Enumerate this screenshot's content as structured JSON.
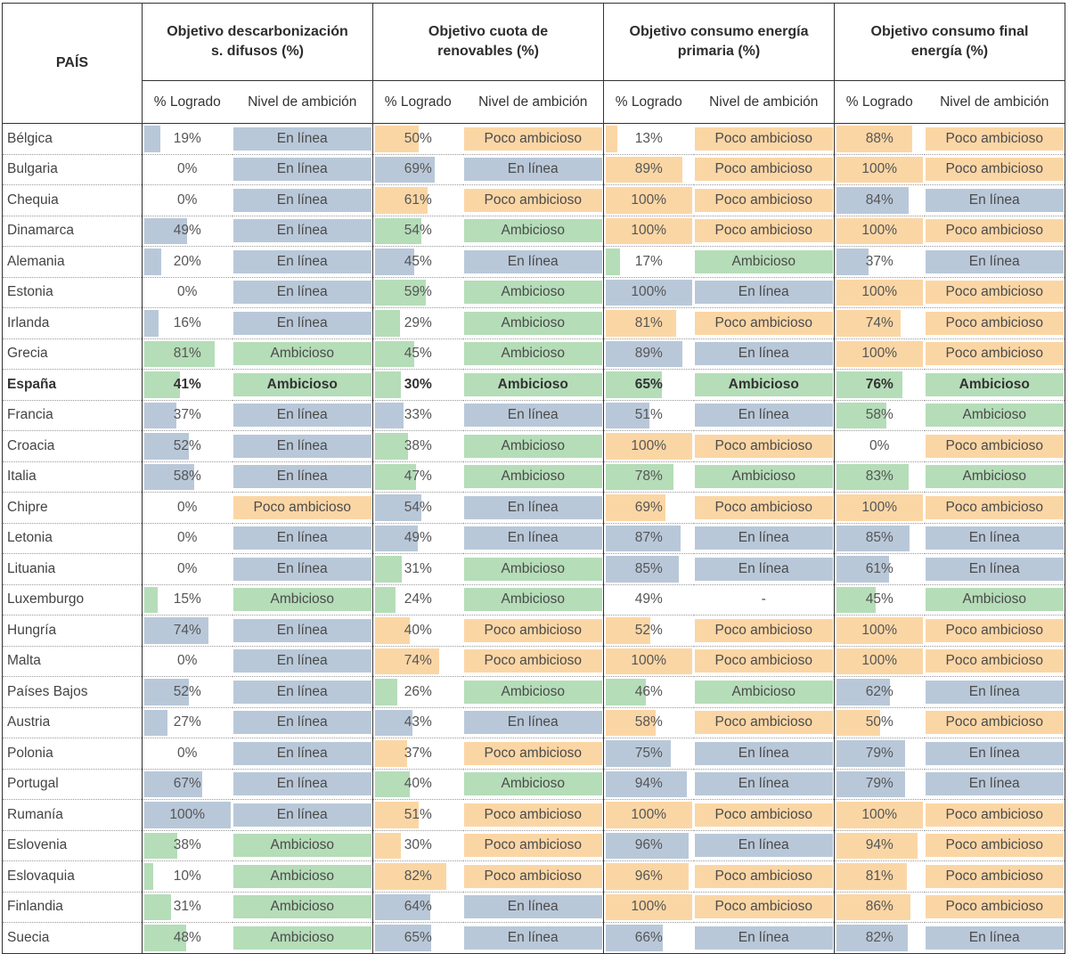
{
  "header": {
    "country_label": "PAÍS",
    "groups": [
      {
        "title_line1": "Objetivo descarbonización",
        "title_line2": "s. difusos (%)"
      },
      {
        "title_line1": "Objetivo cuota de",
        "title_line2": "renovables (%)"
      },
      {
        "title_line1": "Objetivo consumo energía",
        "title_line2": "primaria (%)"
      },
      {
        "title_line1": "Objetivo consumo final",
        "title_line2": "energía (%)"
      }
    ],
    "sub_pct": "% Logrado",
    "sub_level": "Nivel de ambición"
  },
  "colors": {
    "En línea": "#b9c8d9",
    "Ambicioso": "#b5ddb8",
    "Poco ambicioso": "#fbd6a5",
    "-": "#ffffff"
  },
  "chart_data": {
    "type": "table",
    "columns": [
      "PAÍS",
      "Objetivo descarbonización s. difusos (%) - % Logrado",
      "Objetivo descarbonización s. difusos (%) - Nivel de ambición",
      "Objetivo cuota de renovables (%) - % Logrado",
      "Objetivo cuota de renovables (%) - Nivel de ambición",
      "Objetivo consumo energía primaria (%) - % Logrado",
      "Objetivo consumo energía primaria (%) - Nivel de ambición",
      "Objetivo consumo final energía (%) - % Logrado",
      "Objetivo consumo final energía (%) - Nivel de ambición"
    ],
    "highlight_row": "España",
    "rows": [
      {
        "country": "Bélgica",
        "cells": [
          {
            "pct": "19%",
            "value": 19,
            "level": "En línea"
          },
          {
            "pct": "50%",
            "value": 50,
            "level": "Poco ambicioso"
          },
          {
            "pct": "13%",
            "value": 13,
            "level": "Poco ambicioso"
          },
          {
            "pct": "88%",
            "value": 88,
            "level": "Poco ambicioso"
          }
        ]
      },
      {
        "country": "Bulgaria",
        "cells": [
          {
            "pct": "0%",
            "value": 0,
            "level": "En línea"
          },
          {
            "pct": "69%",
            "value": 69,
            "level": "En línea"
          },
          {
            "pct": "89%",
            "value": 89,
            "level": "Poco ambicioso"
          },
          {
            "pct": "100%",
            "value": 100,
            "level": "Poco ambicioso"
          }
        ]
      },
      {
        "country": "Chequia",
        "cells": [
          {
            "pct": "0%",
            "value": 0,
            "level": "En línea"
          },
          {
            "pct": "61%",
            "value": 61,
            "level": "Poco ambicioso"
          },
          {
            "pct": "100%",
            "value": 100,
            "level": "Poco ambicioso"
          },
          {
            "pct": "84%",
            "value": 84,
            "level": "En línea"
          }
        ]
      },
      {
        "country": "Dinamarca",
        "cells": [
          {
            "pct": "49%",
            "value": 49,
            "level": "En línea"
          },
          {
            "pct": "54%",
            "value": 54,
            "level": "Ambicioso"
          },
          {
            "pct": "100%",
            "value": 100,
            "level": "Poco ambicioso"
          },
          {
            "pct": "100%",
            "value": 100,
            "level": "Poco ambicioso"
          }
        ]
      },
      {
        "country": "Alemania",
        "cells": [
          {
            "pct": "20%",
            "value": 20,
            "level": "En línea"
          },
          {
            "pct": "45%",
            "value": 45,
            "level": "En línea"
          },
          {
            "pct": "17%",
            "value": 17,
            "level": "Ambicioso"
          },
          {
            "pct": "37%",
            "value": 37,
            "level": "En línea"
          }
        ]
      },
      {
        "country": "Estonia",
        "cells": [
          {
            "pct": "0%",
            "value": 0,
            "level": "En línea"
          },
          {
            "pct": "59%",
            "value": 59,
            "level": "Ambicioso"
          },
          {
            "pct": "100%",
            "value": 100,
            "level": "En línea"
          },
          {
            "pct": "100%",
            "value": 100,
            "level": "Poco ambicioso"
          }
        ]
      },
      {
        "country": "Irlanda",
        "cells": [
          {
            "pct": "16%",
            "value": 16,
            "level": "En línea"
          },
          {
            "pct": "29%",
            "value": 29,
            "level": "Ambicioso"
          },
          {
            "pct": "81%",
            "value": 81,
            "level": "Poco ambicioso"
          },
          {
            "pct": "74%",
            "value": 74,
            "level": "Poco ambicioso"
          }
        ]
      },
      {
        "country": "Grecia",
        "cells": [
          {
            "pct": "81%",
            "value": 81,
            "level": "Ambicioso"
          },
          {
            "pct": "45%",
            "value": 45,
            "level": "Ambicioso"
          },
          {
            "pct": "89%",
            "value": 89,
            "level": "En línea"
          },
          {
            "pct": "100%",
            "value": 100,
            "level": "Poco ambicioso"
          }
        ]
      },
      {
        "country": "España",
        "cells": [
          {
            "pct": "41%",
            "value": 41,
            "level": "Ambicioso"
          },
          {
            "pct": "30%",
            "value": 30,
            "level": "Ambicioso"
          },
          {
            "pct": "65%",
            "value": 65,
            "level": "Ambicioso"
          },
          {
            "pct": "76%",
            "value": 76,
            "level": "Ambicioso"
          }
        ]
      },
      {
        "country": "Francia",
        "cells": [
          {
            "pct": "37%",
            "value": 37,
            "level": "En línea"
          },
          {
            "pct": "33%",
            "value": 33,
            "level": "En línea"
          },
          {
            "pct": "51%",
            "value": 51,
            "level": "En línea"
          },
          {
            "pct": "58%",
            "value": 58,
            "level": "Ambicioso"
          }
        ]
      },
      {
        "country": "Croacia",
        "cells": [
          {
            "pct": "52%",
            "value": 52,
            "level": "En línea"
          },
          {
            "pct": "38%",
            "value": 38,
            "level": "Ambicioso"
          },
          {
            "pct": "100%",
            "value": 100,
            "level": "Poco ambicioso"
          },
          {
            "pct": "0%",
            "value": 0,
            "level": "Poco ambicioso"
          }
        ]
      },
      {
        "country": "Italia",
        "cells": [
          {
            "pct": "58%",
            "value": 58,
            "level": "En línea"
          },
          {
            "pct": "47%",
            "value": 47,
            "level": "Ambicioso"
          },
          {
            "pct": "78%",
            "value": 78,
            "level": "Ambicioso"
          },
          {
            "pct": "83%",
            "value": 83,
            "level": "Ambicioso"
          }
        ]
      },
      {
        "country": "Chipre",
        "cells": [
          {
            "pct": "0%",
            "value": 0,
            "level": "Poco ambicioso"
          },
          {
            "pct": "54%",
            "value": 54,
            "level": "En línea"
          },
          {
            "pct": "69%",
            "value": 69,
            "level": "Poco ambicioso"
          },
          {
            "pct": "100%",
            "value": 100,
            "level": "Poco ambicioso"
          }
        ]
      },
      {
        "country": "Letonia",
        "cells": [
          {
            "pct": "0%",
            "value": 0,
            "level": "En línea"
          },
          {
            "pct": "49%",
            "value": 49,
            "level": "En línea"
          },
          {
            "pct": "87%",
            "value": 87,
            "level": "En línea"
          },
          {
            "pct": "85%",
            "value": 85,
            "level": "En línea"
          }
        ]
      },
      {
        "country": "Lituania",
        "cells": [
          {
            "pct": "0%",
            "value": 0,
            "level": "En línea"
          },
          {
            "pct": "31%",
            "value": 31,
            "level": "Ambicioso"
          },
          {
            "pct": "85%",
            "value": 85,
            "level": "En línea"
          },
          {
            "pct": "61%",
            "value": 61,
            "level": "En línea"
          }
        ]
      },
      {
        "country": "Luxemburgo",
        "cells": [
          {
            "pct": "15%",
            "value": 15,
            "level": "Ambicioso"
          },
          {
            "pct": "24%",
            "value": 24,
            "level": "Ambicioso"
          },
          {
            "pct": "49%",
            "value": 49,
            "level": "-"
          },
          {
            "pct": "45%",
            "value": 45,
            "level": "Ambicioso"
          }
        ]
      },
      {
        "country": "Hungría",
        "cells": [
          {
            "pct": "74%",
            "value": 74,
            "level": "En línea"
          },
          {
            "pct": "40%",
            "value": 40,
            "level": "Poco ambicioso"
          },
          {
            "pct": "52%",
            "value": 52,
            "level": "Poco ambicioso"
          },
          {
            "pct": "100%",
            "value": 100,
            "level": "Poco ambicioso"
          }
        ]
      },
      {
        "country": "Malta",
        "cells": [
          {
            "pct": "0%",
            "value": 0,
            "level": "En línea"
          },
          {
            "pct": "74%",
            "value": 74,
            "level": "Poco ambicioso"
          },
          {
            "pct": "100%",
            "value": 100,
            "level": "Poco ambicioso"
          },
          {
            "pct": "100%",
            "value": 100,
            "level": "Poco ambicioso"
          }
        ]
      },
      {
        "country": "Países Bajos",
        "cells": [
          {
            "pct": "52%",
            "value": 52,
            "level": "En línea"
          },
          {
            "pct": "26%",
            "value": 26,
            "level": "Ambicioso"
          },
          {
            "pct": "46%",
            "value": 46,
            "level": "Ambicioso"
          },
          {
            "pct": "62%",
            "value": 62,
            "level": "En línea"
          }
        ]
      },
      {
        "country": "Austria",
        "cells": [
          {
            "pct": "27%",
            "value": 27,
            "level": "En línea"
          },
          {
            "pct": "43%",
            "value": 43,
            "level": "En línea"
          },
          {
            "pct": "58%",
            "value": 58,
            "level": "Poco ambicioso"
          },
          {
            "pct": "50%",
            "value": 50,
            "level": "Poco ambicioso"
          }
        ]
      },
      {
        "country": "Polonia",
        "cells": [
          {
            "pct": "0%",
            "value": 0,
            "level": "En línea"
          },
          {
            "pct": "37%",
            "value": 37,
            "level": "Poco ambicioso"
          },
          {
            "pct": "75%",
            "value": 75,
            "level": "En línea"
          },
          {
            "pct": "79%",
            "value": 79,
            "level": "En línea"
          }
        ]
      },
      {
        "country": "Portugal",
        "cells": [
          {
            "pct": "67%",
            "value": 67,
            "level": "En línea"
          },
          {
            "pct": "40%",
            "value": 40,
            "level": "Ambicioso"
          },
          {
            "pct": "94%",
            "value": 94,
            "level": "En línea"
          },
          {
            "pct": "79%",
            "value": 79,
            "level": "En línea"
          }
        ]
      },
      {
        "country": "Rumanía",
        "cells": [
          {
            "pct": "100%",
            "value": 100,
            "level": "En línea"
          },
          {
            "pct": "51%",
            "value": 51,
            "level": "Poco ambicioso"
          },
          {
            "pct": "100%",
            "value": 100,
            "level": "Poco ambicioso"
          },
          {
            "pct": "100%",
            "value": 100,
            "level": "Poco ambicioso"
          }
        ]
      },
      {
        "country": "Eslovenia",
        "cells": [
          {
            "pct": "38%",
            "value": 38,
            "level": "Ambicioso"
          },
          {
            "pct": "30%",
            "value": 30,
            "level": "Poco ambicioso"
          },
          {
            "pct": "96%",
            "value": 96,
            "level": "En línea"
          },
          {
            "pct": "94%",
            "value": 94,
            "level": "Poco ambicioso"
          }
        ]
      },
      {
        "country": "Eslovaquia",
        "cells": [
          {
            "pct": "10%",
            "value": 10,
            "level": "Ambicioso"
          },
          {
            "pct": "82%",
            "value": 82,
            "level": "Poco ambicioso"
          },
          {
            "pct": "96%",
            "value": 96,
            "level": "Poco ambicioso"
          },
          {
            "pct": "81%",
            "value": 81,
            "level": "Poco ambicioso"
          }
        ]
      },
      {
        "country": "Finlandia",
        "cells": [
          {
            "pct": "31%",
            "value": 31,
            "level": "Ambicioso"
          },
          {
            "pct": "64%",
            "value": 64,
            "level": "En línea"
          },
          {
            "pct": "100%",
            "value": 100,
            "level": "Poco ambicioso"
          },
          {
            "pct": "86%",
            "value": 86,
            "level": "Poco ambicioso"
          }
        ]
      },
      {
        "country": "Suecia",
        "cells": [
          {
            "pct": "48%",
            "value": 48,
            "level": "Ambicioso"
          },
          {
            "pct": "65%",
            "value": 65,
            "level": "En línea"
          },
          {
            "pct": "66%",
            "value": 66,
            "level": "En línea"
          },
          {
            "pct": "82%",
            "value": 82,
            "level": "En línea"
          }
        ]
      }
    ]
  }
}
